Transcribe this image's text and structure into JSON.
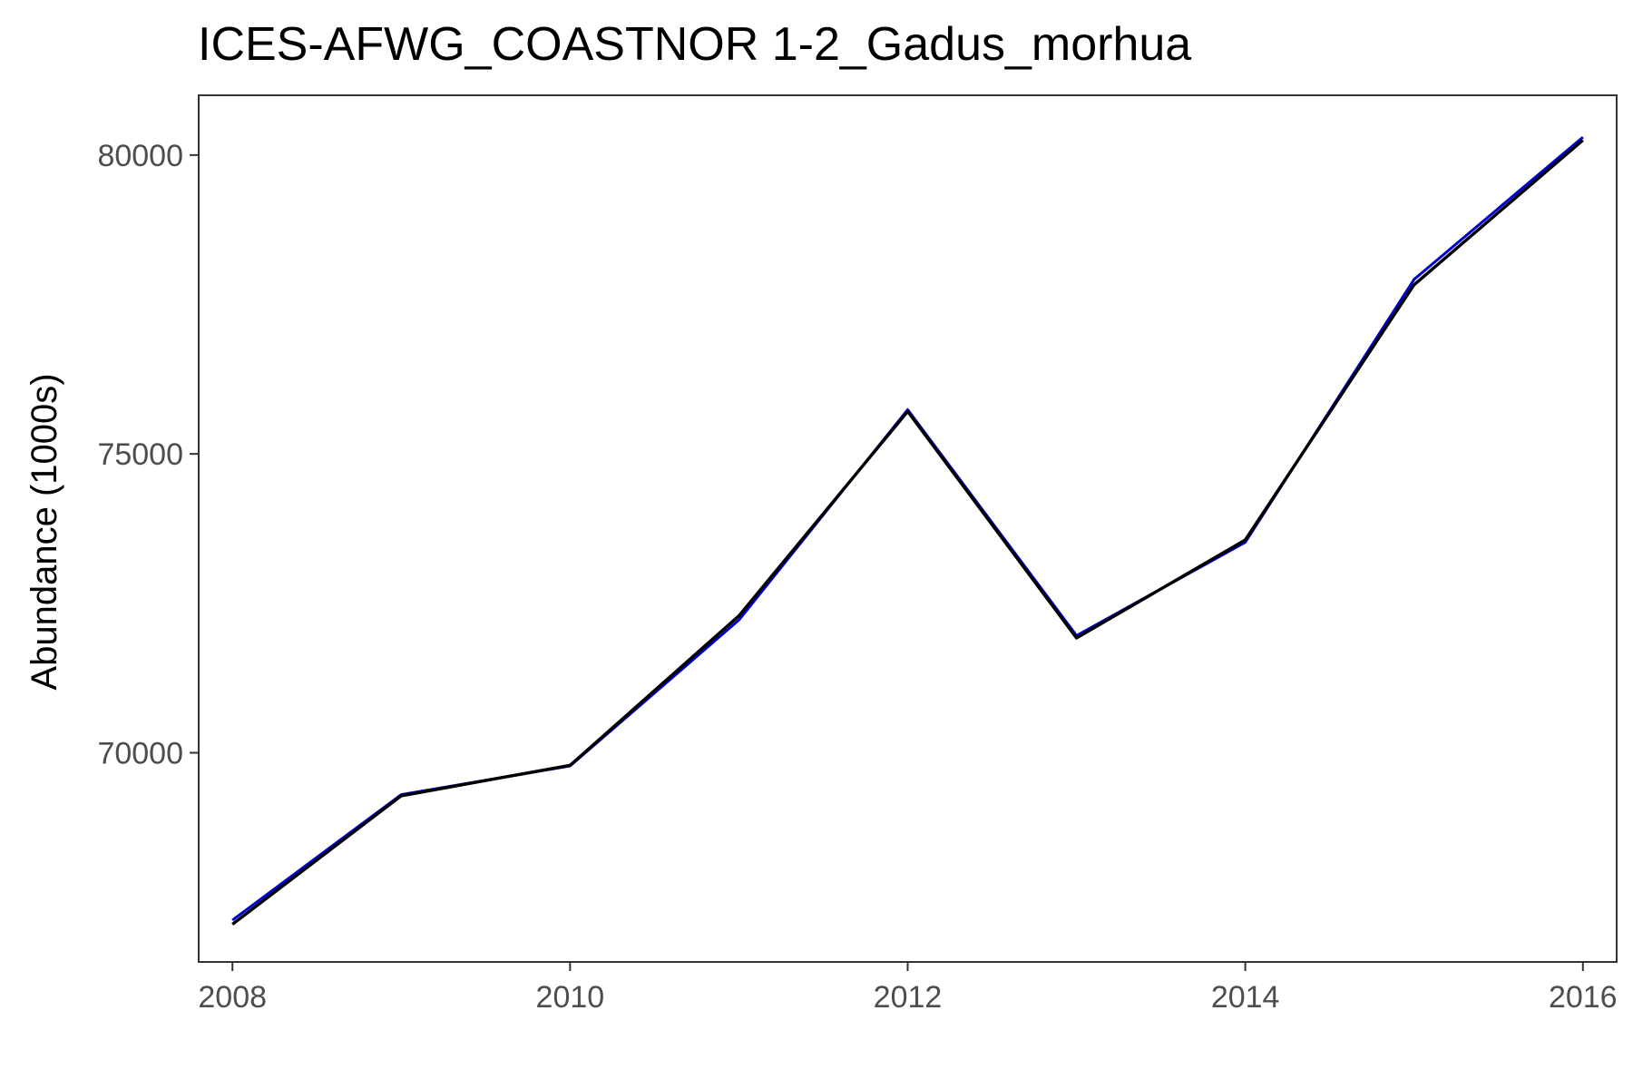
{
  "chart_data": {
    "type": "line",
    "title": "ICES-AFWG_COASTNOR 1-2_Gadus_morhua",
    "xlabel": "",
    "ylabel": "Abundance (1000s)",
    "x": [
      2008,
      2009,
      2010,
      2011,
      2012,
      2013,
      2014,
      2015,
      2016
    ],
    "x_ticks": [
      "2008",
      "2010",
      "2012",
      "2014",
      "2016"
    ],
    "y_ticks": [
      "70000",
      "75000",
      "80000"
    ],
    "xlim": [
      2007.8,
      2016.2
    ],
    "ylim": [
      66500,
      81000
    ],
    "grid": false,
    "legend": "none",
    "series": [
      {
        "color": "#0000cc",
        "values": [
          67200,
          69300,
          69780,
          72220,
          75740,
          71960,
          73520,
          77920,
          80300
        ]
      },
      {
        "color": "#000000",
        "values": [
          67130,
          69280,
          69790,
          72290,
          75710,
          71920,
          73560,
          77830,
          80250
        ]
      }
    ]
  }
}
